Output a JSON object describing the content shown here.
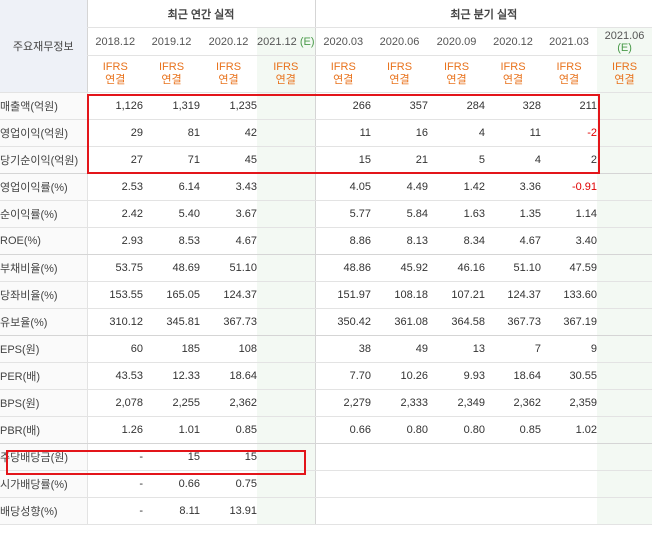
{
  "header": {
    "row_label": "주요재무정보",
    "annual_title": "최근 연간 실적",
    "quarter_title": "최근 분기 실적",
    "periods": [
      "2018.12",
      "2019.12",
      "2020.12",
      "2021.12",
      "2020.03",
      "2020.06",
      "2020.09",
      "2020.12",
      "2021.03",
      "2021.06"
    ],
    "estimate_mark": "(E)",
    "basis_top": "IFRS",
    "basis_bottom": "연결"
  },
  "rows": [
    {
      "label": "매출액(억원)",
      "values": [
        "1,126",
        "1,319",
        "1,235",
        "",
        "266",
        "357",
        "284",
        "328",
        "211",
        ""
      ]
    },
    {
      "label": "영업이익(억원)",
      "values": [
        "29",
        "81",
        "42",
        "",
        "11",
        "16",
        "4",
        "11",
        "-2",
        ""
      ]
    },
    {
      "label": "당기순이익(억원)",
      "values": [
        "27",
        "71",
        "45",
        "",
        "15",
        "21",
        "5",
        "4",
        "2",
        ""
      ]
    },
    {
      "label": "영업이익률(%)",
      "values": [
        "2.53",
        "6.14",
        "3.43",
        "",
        "4.05",
        "4.49",
        "1.42",
        "3.36",
        "-0.91",
        ""
      ]
    },
    {
      "label": "순이익률(%)",
      "values": [
        "2.42",
        "5.40",
        "3.67",
        "",
        "5.77",
        "5.84",
        "1.63",
        "1.35",
        "1.14",
        ""
      ]
    },
    {
      "label": "ROE(%)",
      "values": [
        "2.93",
        "8.53",
        "4.67",
        "",
        "8.86",
        "8.13",
        "8.34",
        "4.67",
        "3.40",
        ""
      ]
    },
    {
      "label": "부채비율(%)",
      "values": [
        "53.75",
        "48.69",
        "51.10",
        "",
        "48.86",
        "45.92",
        "46.16",
        "51.10",
        "47.59",
        ""
      ]
    },
    {
      "label": "당좌비율(%)",
      "values": [
        "153.55",
        "165.05",
        "124.37",
        "",
        "151.97",
        "108.18",
        "107.21",
        "124.37",
        "133.60",
        ""
      ]
    },
    {
      "label": "유보율(%)",
      "values": [
        "310.12",
        "345.81",
        "367.73",
        "",
        "350.42",
        "361.08",
        "364.58",
        "367.73",
        "367.19",
        ""
      ]
    },
    {
      "label": "EPS(원)",
      "values": [
        "60",
        "185",
        "108",
        "",
        "38",
        "49",
        "13",
        "7",
        "9",
        ""
      ]
    },
    {
      "label": "PER(배)",
      "values": [
        "43.53",
        "12.33",
        "18.64",
        "",
        "7.70",
        "10.26",
        "9.93",
        "18.64",
        "30.55",
        ""
      ]
    },
    {
      "label": "BPS(원)",
      "values": [
        "2,078",
        "2,255",
        "2,362",
        "",
        "2,279",
        "2,333",
        "2,349",
        "2,362",
        "2,359",
        ""
      ]
    },
    {
      "label": "PBR(배)",
      "values": [
        "1.26",
        "1.01",
        "0.85",
        "",
        "0.66",
        "0.80",
        "0.80",
        "0.85",
        "1.02",
        ""
      ]
    },
    {
      "label": "주당배당금(원)",
      "values": [
        "-",
        "15",
        "15",
        "",
        "",
        "",
        "",
        "",
        "",
        ""
      ]
    },
    {
      "label": "시가배당률(%)",
      "values": [
        "-",
        "0.66",
        "0.75",
        "",
        "",
        "",
        "",
        "",
        "",
        ""
      ]
    },
    {
      "label": "배당성향(%)",
      "values": [
        "-",
        "8.11",
        "13.91",
        "",
        "",
        "",
        "",
        "",
        "",
        ""
      ]
    }
  ],
  "negative_color": "#e00000",
  "basis_color": "#e8721c",
  "highlight_color": "#e3151a"
}
